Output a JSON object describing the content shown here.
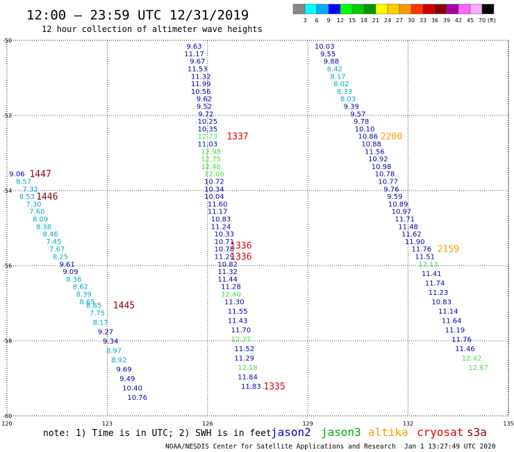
{
  "header": {
    "title": "12:00 — 23:59 UTC 12/31/2019",
    "subtitle": "12 hour collection of altimeter wave heights"
  },
  "footer": {
    "note": "note: 1) Time is in UTC; 2) SWH is in feet",
    "credit": "NOAA/NESDIS Center for Satellite Applications and Research",
    "timestamp": "Jan  1 13:27:49 UTC 2020"
  },
  "legend": {
    "satellites": [
      {
        "name": "jason2",
        "color": "#0000cc"
      },
      {
        "name": "jason3",
        "color": "#00aa00"
      },
      {
        "name": "altika",
        "color": "#ff9900"
      },
      {
        "name": "cryosat",
        "color": "#dd0000"
      },
      {
        "name": "s3a",
        "color": "#880000"
      }
    ],
    "colorbar": {
      "labels": [
        "3",
        "6",
        "9",
        "12",
        "15",
        "18",
        "21",
        "24",
        "27",
        "30",
        "33",
        "36",
        "39",
        "42",
        "45",
        "70"
      ],
      "unit": "(ft)",
      "colors": [
        "#888888",
        "#00ffff",
        "#00aaff",
        "#0000ff",
        "#00ff00",
        "#00cc00",
        "#009900",
        "#ffff00",
        "#ffcc00",
        "#ff9900",
        "#ff3300",
        "#cc0000",
        "#880000",
        "#aa00aa",
        "#ff66ff",
        "#ffaaff",
        "#000000"
      ]
    }
  },
  "chart_data": {
    "type": "scatter",
    "xlim": [
      120,
      135
    ],
    "ylim": [
      -60,
      -50
    ],
    "xticks": [
      "120",
      "123",
      "126",
      "129",
      "132",
      "135"
    ],
    "yticks": [
      "-50",
      "-52",
      "-54",
      "-56",
      "-58",
      "-60"
    ],
    "grid": true,
    "track_points": [
      {
        "x": 120.3,
        "y": -53.55,
        "v": "9.06",
        "c": "#0000aa"
      },
      {
        "x": 120.5,
        "y": -53.75,
        "v": "8.57",
        "c": "#00aacc"
      },
      {
        "x": 120.7,
        "y": -53.95,
        "v": "7.32",
        "c": "#00aacc"
      },
      {
        "x": 120.6,
        "y": -54.15,
        "v": "8.53",
        "c": "#00aacc"
      },
      {
        "x": 120.8,
        "y": -54.35,
        "v": "7.30",
        "c": "#00aacc"
      },
      {
        "x": 120.9,
        "y": -54.55,
        "v": "7.60",
        "c": "#00aacc"
      },
      {
        "x": 121.0,
        "y": -54.75,
        "v": "8.09",
        "c": "#00aacc"
      },
      {
        "x": 121.1,
        "y": -54.95,
        "v": "8.38",
        "c": "#00aacc"
      },
      {
        "x": 121.3,
        "y": -55.15,
        "v": "8.46",
        "c": "#00aacc"
      },
      {
        "x": 121.4,
        "y": -55.35,
        "v": "7.45",
        "c": "#00aacc"
      },
      {
        "x": 121.5,
        "y": -55.55,
        "v": "7.67",
        "c": "#00aacc"
      },
      {
        "x": 121.6,
        "y": -55.75,
        "v": "8.25",
        "c": "#00aacc"
      },
      {
        "x": 121.8,
        "y": -55.95,
        "v": "9.61",
        "c": "#0000aa"
      },
      {
        "x": 121.9,
        "y": -56.15,
        "v": "9.09",
        "c": "#0000aa"
      },
      {
        "x": 122.0,
        "y": -56.35,
        "v": "8.36",
        "c": "#00aacc"
      },
      {
        "x": 122.2,
        "y": -56.55,
        "v": "8.62",
        "c": "#00aacc"
      },
      {
        "x": 122.3,
        "y": -56.75,
        "v": "8.39",
        "c": "#00aacc"
      },
      {
        "x": 122.4,
        "y": -56.95,
        "v": "8.65",
        "c": "#00aacc"
      },
      {
        "x": 122.6,
        "y": -57.05,
        "v": "8.85",
        "c": "#00aacc"
      },
      {
        "x": 122.7,
        "y": -57.25,
        "v": "7.75",
        "c": "#00aacc"
      },
      {
        "x": 122.8,
        "y": -57.5,
        "v": "8.17",
        "c": "#00aacc"
      },
      {
        "x": 122.95,
        "y": -57.75,
        "v": "9.27",
        "c": "#0000aa"
      },
      {
        "x": 123.1,
        "y": -58.0,
        "v": "9.34",
        "c": "#0000aa"
      },
      {
        "x": 123.2,
        "y": -58.25,
        "v": "8.97",
        "c": "#00aacc"
      },
      {
        "x": 123.35,
        "y": -58.5,
        "v": "8.92",
        "c": "#00aacc"
      },
      {
        "x": 123.5,
        "y": -58.75,
        "v": "9.69",
        "c": "#0000aa"
      },
      {
        "x": 123.6,
        "y": -59.0,
        "v": "9.49",
        "c": "#0000aa"
      },
      {
        "x": 123.75,
        "y": -59.25,
        "v": "10.40",
        "c": "#0000aa"
      },
      {
        "x": 123.9,
        "y": -59.5,
        "v": "10.76",
        "c": "#0000aa"
      },
      {
        "x": 125.6,
        "y": -50.15,
        "v": "9.63",
        "c": "#0000aa"
      },
      {
        "x": 125.6,
        "y": -50.35,
        "v": "11.17",
        "c": "#0000aa"
      },
      {
        "x": 125.7,
        "y": -50.55,
        "v": "9.67",
        "c": "#0000aa"
      },
      {
        "x": 125.7,
        "y": -50.75,
        "v": "11.53",
        "c": "#0000aa"
      },
      {
        "x": 125.8,
        "y": -50.95,
        "v": "11.32",
        "c": "#0000aa"
      },
      {
        "x": 125.8,
        "y": -51.15,
        "v": "11.99",
        "c": "#0000aa"
      },
      {
        "x": 125.8,
        "y": -51.35,
        "v": "10.56",
        "c": "#0000aa"
      },
      {
        "x": 125.9,
        "y": -51.55,
        "v": "9.62",
        "c": "#0000aa"
      },
      {
        "x": 125.9,
        "y": -51.75,
        "v": "9.52",
        "c": "#0000aa"
      },
      {
        "x": 125.95,
        "y": -51.95,
        "v": "9.72",
        "c": "#0000aa"
      },
      {
        "x": 126.0,
        "y": -52.15,
        "v": "10.25",
        "c": "#0000aa"
      },
      {
        "x": 126.0,
        "y": -52.35,
        "v": "10.35",
        "c": "#0000aa"
      },
      {
        "x": 126.0,
        "y": -52.55,
        "v": "12.73",
        "c": "#44dd44"
      },
      {
        "x": 126.0,
        "y": -52.75,
        "v": "11.03",
        "c": "#0000aa"
      },
      {
        "x": 126.1,
        "y": -52.95,
        "v": "12.98",
        "c": "#44dd44"
      },
      {
        "x": 126.1,
        "y": -53.15,
        "v": "12.75",
        "c": "#44dd44"
      },
      {
        "x": 126.1,
        "y": -53.35,
        "v": "12.46",
        "c": "#44dd44"
      },
      {
        "x": 126.2,
        "y": -53.55,
        "v": "12.06",
        "c": "#44dd44"
      },
      {
        "x": 126.2,
        "y": -53.75,
        "v": "10.72",
        "c": "#0000aa"
      },
      {
        "x": 126.2,
        "y": -53.95,
        "v": "10.34",
        "c": "#0000aa"
      },
      {
        "x": 126.2,
        "y": -54.15,
        "v": "10.04",
        "c": "#0000aa"
      },
      {
        "x": 126.3,
        "y": -54.35,
        "v": "11.60",
        "c": "#0000aa"
      },
      {
        "x": 126.3,
        "y": -54.55,
        "v": "11.17",
        "c": "#0000aa"
      },
      {
        "x": 126.4,
        "y": -54.75,
        "v": "10.83",
        "c": "#0000aa"
      },
      {
        "x": 126.4,
        "y": -54.95,
        "v": "11.24",
        "c": "#0000aa"
      },
      {
        "x": 126.5,
        "y": -55.15,
        "v": "10.33",
        "c": "#0000aa"
      },
      {
        "x": 126.5,
        "y": -55.35,
        "v": "10.71",
        "c": "#0000aa"
      },
      {
        "x": 126.5,
        "y": -55.55,
        "v": "10.78",
        "c": "#0000aa"
      },
      {
        "x": 126.5,
        "y": -55.75,
        "v": "11.29",
        "c": "#0000aa"
      },
      {
        "x": 126.6,
        "y": -55.95,
        "v": "10.82",
        "c": "#0000aa"
      },
      {
        "x": 126.6,
        "y": -56.15,
        "v": "11.32",
        "c": "#0000aa"
      },
      {
        "x": 126.6,
        "y": -56.35,
        "v": "11.44",
        "c": "#0000aa"
      },
      {
        "x": 126.7,
        "y": -56.55,
        "v": "11.28",
        "c": "#0000aa"
      },
      {
        "x": 126.7,
        "y": -56.75,
        "v": "12.40",
        "c": "#44dd44"
      },
      {
        "x": 126.8,
        "y": -56.95,
        "v": "11.30",
        "c": "#0000aa"
      },
      {
        "x": 126.9,
        "y": -57.2,
        "v": "11.55",
        "c": "#0000aa"
      },
      {
        "x": 126.9,
        "y": -57.45,
        "v": "11.43",
        "c": "#0000aa"
      },
      {
        "x": 127.0,
        "y": -57.7,
        "v": "11.70",
        "c": "#0000aa"
      },
      {
        "x": 127.0,
        "y": -57.95,
        "v": "12.77",
        "c": "#44dd44"
      },
      {
        "x": 127.1,
        "y": -58.2,
        "v": "11.52",
        "c": "#0000aa"
      },
      {
        "x": 127.1,
        "y": -58.45,
        "v": "11.29",
        "c": "#0000aa"
      },
      {
        "x": 127.2,
        "y": -58.7,
        "v": "12.18",
        "c": "#44dd44"
      },
      {
        "x": 127.2,
        "y": -58.95,
        "v": "11.84",
        "c": "#0000aa"
      },
      {
        "x": 127.3,
        "y": -59.2,
        "v": "11.83",
        "c": "#0000aa"
      },
      {
        "x": 129.5,
        "y": -50.15,
        "v": "10.03",
        "c": "#0000aa"
      },
      {
        "x": 129.6,
        "y": -50.35,
        "v": "9.55",
        "c": "#0000aa"
      },
      {
        "x": 129.7,
        "y": -50.55,
        "v": "9.88",
        "c": "#0000aa"
      },
      {
        "x": 129.8,
        "y": -50.75,
        "v": "8.42",
        "c": "#00aacc"
      },
      {
        "x": 129.9,
        "y": -50.95,
        "v": "8.17",
        "c": "#00aacc"
      },
      {
        "x": 130.0,
        "y": -51.15,
        "v": "8.02",
        "c": "#00aacc"
      },
      {
        "x": 130.1,
        "y": -51.35,
        "v": "8.33",
        "c": "#00aacc"
      },
      {
        "x": 130.2,
        "y": -51.55,
        "v": "8.03",
        "c": "#00aacc"
      },
      {
        "x": 130.3,
        "y": -51.75,
        "v": "9.39",
        "c": "#0000aa"
      },
      {
        "x": 130.5,
        "y": -51.95,
        "v": "9.57",
        "c": "#0000aa"
      },
      {
        "x": 130.6,
        "y": -52.15,
        "v": "9.78",
        "c": "#0000aa"
      },
      {
        "x": 130.7,
        "y": -52.35,
        "v": "10.10",
        "c": "#0000aa"
      },
      {
        "x": 130.8,
        "y": -52.55,
        "v": "10.86",
        "c": "#0000aa"
      },
      {
        "x": 130.9,
        "y": -52.75,
        "v": "10.88",
        "c": "#0000aa"
      },
      {
        "x": 131.0,
        "y": -52.95,
        "v": "11.56",
        "c": "#0000aa"
      },
      {
        "x": 131.1,
        "y": -53.15,
        "v": "10.92",
        "c": "#0000aa"
      },
      {
        "x": 131.2,
        "y": -53.35,
        "v": "10.98",
        "c": "#0000aa"
      },
      {
        "x": 131.3,
        "y": -53.55,
        "v": "10.78",
        "c": "#0000aa"
      },
      {
        "x": 131.4,
        "y": -53.75,
        "v": "10.77",
        "c": "#0000aa"
      },
      {
        "x": 131.5,
        "y": -53.95,
        "v": "9.76",
        "c": "#0000aa"
      },
      {
        "x": 131.6,
        "y": -54.15,
        "v": "9.59",
        "c": "#0000aa"
      },
      {
        "x": 131.7,
        "y": -54.35,
        "v": "10.89",
        "c": "#0000aa"
      },
      {
        "x": 131.8,
        "y": -54.55,
        "v": "10.97",
        "c": "#0000aa"
      },
      {
        "x": 131.9,
        "y": -54.75,
        "v": "11.71",
        "c": "#0000aa"
      },
      {
        "x": 132.0,
        "y": -54.95,
        "v": "11.48",
        "c": "#0000aa"
      },
      {
        "x": 132.1,
        "y": -55.15,
        "v": "11.62",
        "c": "#0000aa"
      },
      {
        "x": 132.2,
        "y": -55.35,
        "v": "11.90",
        "c": "#0000aa"
      },
      {
        "x": 132.4,
        "y": -55.55,
        "v": "11.76",
        "c": "#0000aa"
      },
      {
        "x": 132.5,
        "y": -55.75,
        "v": "11.51",
        "c": "#0000aa"
      },
      {
        "x": 132.6,
        "y": -55.95,
        "v": "12.13",
        "c": "#44dd44"
      },
      {
        "x": 132.7,
        "y": -56.2,
        "v": "11.41",
        "c": "#0000aa"
      },
      {
        "x": 132.8,
        "y": -56.45,
        "v": "11.74",
        "c": "#0000aa"
      },
      {
        "x": 132.9,
        "y": -56.7,
        "v": "11.23",
        "c": "#0000aa"
      },
      {
        "x": 133.0,
        "y": -56.95,
        "v": "10.83",
        "c": "#0000aa"
      },
      {
        "x": 133.2,
        "y": -57.2,
        "v": "11.14",
        "c": "#0000aa"
      },
      {
        "x": 133.3,
        "y": -57.45,
        "v": "11.64",
        "c": "#0000aa"
      },
      {
        "x": 133.4,
        "y": -57.7,
        "v": "11.19",
        "c": "#0000aa"
      },
      {
        "x": 133.6,
        "y": -57.95,
        "v": "11.76",
        "c": "#0000aa"
      },
      {
        "x": 133.7,
        "y": -58.2,
        "v": "11.46",
        "c": "#0000aa"
      },
      {
        "x": 133.9,
        "y": -58.45,
        "v": "12.42",
        "c": "#44dd44"
      },
      {
        "x": 134.1,
        "y": -58.7,
        "v": "12.67",
        "c": "#44dd44"
      }
    ],
    "time_labels": [
      {
        "x": 121.0,
        "y": -53.55,
        "t": "1447",
        "c": "#880000"
      },
      {
        "x": 121.2,
        "y": -54.15,
        "t": "1446",
        "c": "#880000"
      },
      {
        "x": 123.5,
        "y": -57.05,
        "t": "1445",
        "c": "#880000"
      },
      {
        "x": 126.9,
        "y": -52.55,
        "t": "1337",
        "c": "#dd0000"
      },
      {
        "x": 127.0,
        "y": -55.45,
        "t": "1336",
        "c": "#dd0000"
      },
      {
        "x": 127.0,
        "y": -55.75,
        "t": "1336",
        "c": "#dd0000"
      },
      {
        "x": 128.0,
        "y": -59.2,
        "t": "1335",
        "c": "#dd0000"
      },
      {
        "x": 131.5,
        "y": -52.55,
        "t": "2200",
        "c": "#ff9900"
      },
      {
        "x": 133.2,
        "y": -55.55,
        "t": "2159",
        "c": "#ff9900"
      }
    ]
  }
}
